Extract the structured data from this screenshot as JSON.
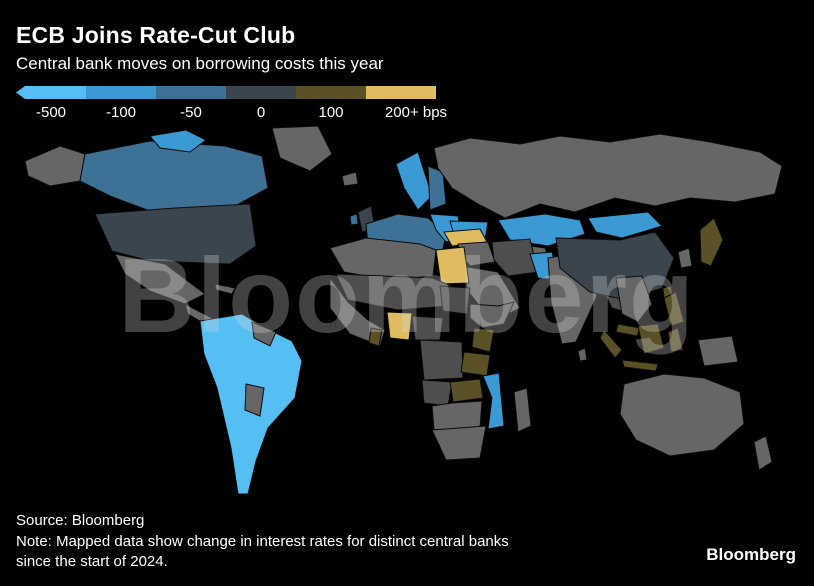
{
  "header": {
    "title": "ECB Joins Rate-Cut Club",
    "subtitle": "Central bank moves on borrowing costs this year"
  },
  "watermark": "Bloomberg",
  "footer": {
    "source": "Source: Bloomberg",
    "note_line1": "Note: Mapped data show change in interest rates for distinct central banks",
    "note_line2": "since the start of 2024.",
    "brand": "Bloomberg"
  },
  "chart_data": {
    "type": "heatmap",
    "subtype": "choropleth-world-map",
    "title": "ECB Joins Rate-Cut Club",
    "subtitle": "Central bank moves on borrowing costs this year",
    "legend_ticks": [
      "-500",
      "-100",
      "-50",
      "0",
      "100",
      "200+ bps"
    ],
    "legend_colors": [
      "#55bef2",
      "#3b9ad4",
      "#3d7296",
      "#3a454e",
      "#5a5126",
      "#dfbc60"
    ],
    "bucket_colors": {
      "cut_deep": "#55bef2",
      "cut_medium": "#3b9ad4",
      "cut_small": "#3d7296",
      "hold": "#3a454e",
      "hike_small": "#5a5126",
      "hike_large": "#dfbc60",
      "no_data": "#666666",
      "land_dark": "#4e4e4e"
    },
    "regions": {
      "alaska": "no_data",
      "canada": "cut_small",
      "arctic-islands": "cut_medium",
      "greenland": "no_data",
      "usa": "hold",
      "mexico": "no_data",
      "central-america": "no_data",
      "cuba": "no_data",
      "south-america-core": "cut_deep",
      "guianas": "no_data",
      "bolivia-paraguay": "no_data",
      "iceland": "no_data",
      "uk": "hold",
      "ireland": "cut_small",
      "scandinavia": "cut_medium",
      "finland": "cut_small",
      "western-europe": "cut_small",
      "iberia": "cut_small",
      "eastern-europe": "cut_medium",
      "ukraine": "cut_medium",
      "russia": "no_data",
      "kazakhstan": "cut_medium",
      "central-asia": "no_data",
      "turkey": "hike_large",
      "levant-iraq": "no_data",
      "iran": "land_dark",
      "arabia": "no_data",
      "egypt": "hike_large",
      "north-africa": "no_data",
      "sahara": "land_dark",
      "west-africa": "no_data",
      "ghana": "hike_small",
      "nigeria": "hike_large",
      "sudan": "land_dark",
      "horn-of-africa": "no_data",
      "central-africa": "land_dark",
      "drc": "land_dark",
      "kenya": "hike_small",
      "tanzania": "hike_small",
      "angola": "land_dark",
      "zambia": "hike_small",
      "mozambique": "cut_medium",
      "zimbabwe-botswana": "no_data",
      "south-africa": "no_data",
      "madagascar": "no_data",
      "pakistan": "cut_medium",
      "india": "no_data",
      "sri-lanka": "no_data",
      "myanmar": "land_dark",
      "china": "hold",
      "mongolia": "cut_medium",
      "korea": "no_data",
      "japan": "hike_small",
      "taiwan": "hike_small",
      "se-asia": "no_data",
      "malaysia": "hike_small",
      "sumatra": "hike_small",
      "java": "hike_small",
      "borneo": "hike_small",
      "sulawesi": "hike_small",
      "philippines": "hike_small",
      "new-guinea": "no_data",
      "australia": "no_data",
      "new-zealand": "no_data"
    }
  }
}
